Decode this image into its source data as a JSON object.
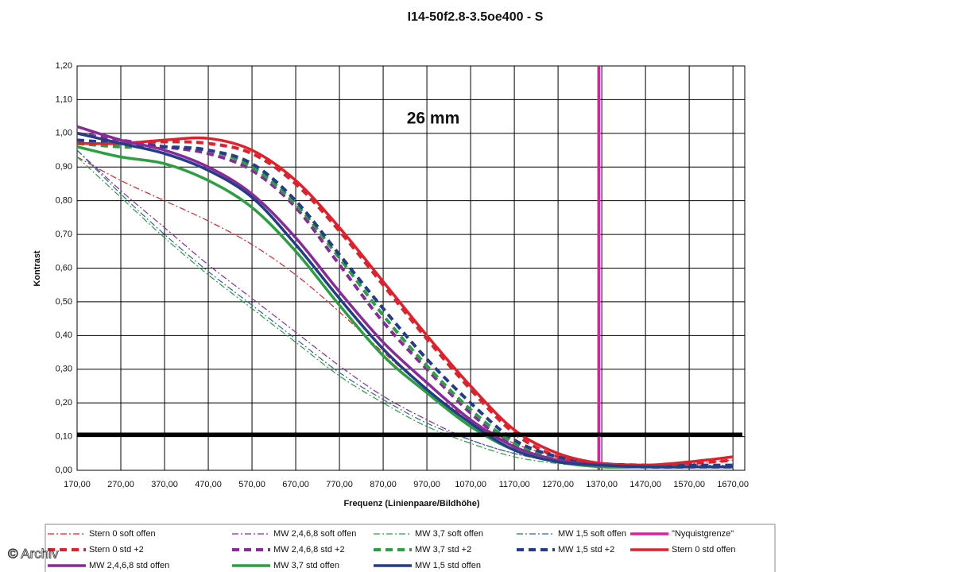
{
  "chart_data": {
    "type": "line",
    "title": "I14-50f2.8-3.5oe400 - S",
    "annotation": "26 mm",
    "watermark": "© Archiv",
    "xlabel": "Frequenz (Linienpaare/Bildhöhe)",
    "ylabel": "Kontrast",
    "x": [
      170,
      270,
      370,
      470,
      570,
      670,
      770,
      870,
      970,
      1070,
      1170,
      1270,
      1370,
      1470,
      1570,
      1670
    ],
    "xlim": [
      170,
      1697
    ],
    "ylim": [
      0,
      1.2
    ],
    "xticks": [
      {
        "value": 170,
        "label": "170,00"
      },
      {
        "value": 270,
        "label": "270,00"
      },
      {
        "value": 370,
        "label": "370,00"
      },
      {
        "value": 470,
        "label": "470,00"
      },
      {
        "value": 570,
        "label": "570,00"
      },
      {
        "value": 670,
        "label": "670,00"
      },
      {
        "value": 770,
        "label": "770,00"
      },
      {
        "value": 870,
        "label": "870,00"
      },
      {
        "value": 970,
        "label": "970,00"
      },
      {
        "value": 1070,
        "label": "1070,00"
      },
      {
        "value": 1170,
        "label": "1170,00"
      },
      {
        "value": 1270,
        "label": "1270,00"
      },
      {
        "value": 1370,
        "label": "1370,00"
      },
      {
        "value": 1470,
        "label": "1470,00"
      },
      {
        "value": 1570,
        "label": "1570,00"
      },
      {
        "value": 1670,
        "label": "1670,00"
      }
    ],
    "yticks": [
      {
        "value": 0,
        "label": "0,00"
      },
      {
        "value": 0.1,
        "label": "0,10"
      },
      {
        "value": 0.2,
        "label": "0,20"
      },
      {
        "value": 0.3,
        "label": "0,30"
      },
      {
        "value": 0.4,
        "label": "0,40"
      },
      {
        "value": 0.5,
        "label": "0,50"
      },
      {
        "value": 0.6,
        "label": "0,60"
      },
      {
        "value": 0.7,
        "label": "0,70"
      },
      {
        "value": 0.8,
        "label": "0,80"
      },
      {
        "value": 0.9,
        "label": "0,90"
      },
      {
        "value": 1.0,
        "label": "1,00"
      },
      {
        "value": 1.1,
        "label": "1,10"
      },
      {
        "value": 1.2,
        "label": "1,20"
      }
    ],
    "grid": true,
    "reference_line": {
      "value": 0.106,
      "color": "#000000"
    },
    "series": [
      {
        "name": "Stern 0 soft offen",
        "color": "#e0202a",
        "style": "dashdot-thin",
        "values": [
          0.93,
          0.86,
          0.8,
          0.74,
          0.67,
          0.58,
          0.47,
          0.35,
          0.24,
          0.15,
          0.08,
          0.04,
          0.02,
          0.015,
          0.02,
          0.03
        ]
      },
      {
        "name": "MW 2,4,6,8 soft offen",
        "color": "#8a2a9a",
        "style": "dashdot-thin",
        "values": [
          0.95,
          0.83,
          0.72,
          0.61,
          0.51,
          0.41,
          0.31,
          0.22,
          0.15,
          0.09,
          0.05,
          0.025,
          0.015,
          0.01,
          0.01,
          0.01
        ]
      },
      {
        "name": "MW 3,7 soft offen",
        "color": "#2aa040",
        "style": "dashdot-thin",
        "values": [
          0.93,
          0.81,
          0.69,
          0.58,
          0.48,
          0.38,
          0.28,
          0.2,
          0.13,
          0.08,
          0.04,
          0.02,
          0.01,
          0.01,
          0.01,
          0.01
        ]
      },
      {
        "name": "MW 1,5 soft offen",
        "color": "#2a6a9a",
        "style": "dashdot-thin",
        "values": [
          0.95,
          0.82,
          0.7,
          0.59,
          0.49,
          0.39,
          0.29,
          0.21,
          0.14,
          0.09,
          0.05,
          0.03,
          0.02,
          0.015,
          0.015,
          0.015
        ]
      },
      {
        "name": "\"Nyquistgrenze\"",
        "color": "#e0209a",
        "style": "vertical",
        "xvalue": 1363
      },
      {
        "name": "Stern 0 std +2",
        "color": "#e0202a",
        "style": "dashed-thick",
        "values": [
          0.97,
          0.97,
          0.975,
          0.97,
          0.94,
          0.85,
          0.71,
          0.55,
          0.39,
          0.24,
          0.11,
          0.04,
          0.02,
          0.015,
          0.02,
          0.03
        ]
      },
      {
        "name": "MW 2,4,6,8 std +2",
        "color": "#8a2a9a",
        "style": "dashed-thick",
        "values": [
          1.0,
          0.98,
          0.96,
          0.94,
          0.89,
          0.78,
          0.61,
          0.44,
          0.3,
          0.17,
          0.07,
          0.03,
          0.015,
          0.01,
          0.01,
          0.01
        ]
      },
      {
        "name": "MW 3,7 std +2",
        "color": "#2aa040",
        "style": "dashed-thick",
        "values": [
          0.97,
          0.96,
          0.96,
          0.95,
          0.9,
          0.79,
          0.63,
          0.46,
          0.31,
          0.18,
          0.08,
          0.03,
          0.015,
          0.01,
          0.01,
          0.01
        ]
      },
      {
        "name": "MW 1,5 std +2",
        "color": "#243c8a",
        "style": "dashed-thick",
        "values": [
          0.98,
          0.97,
          0.96,
          0.95,
          0.91,
          0.8,
          0.64,
          0.48,
          0.33,
          0.2,
          0.09,
          0.04,
          0.02,
          0.015,
          0.015,
          0.015
        ]
      },
      {
        "name": "Stern 0 std offen",
        "color": "#e0202a",
        "style": "solid-thick",
        "values": [
          0.97,
          0.97,
          0.98,
          0.985,
          0.95,
          0.86,
          0.72,
          0.56,
          0.4,
          0.25,
          0.12,
          0.05,
          0.02,
          0.015,
          0.025,
          0.04
        ]
      },
      {
        "name": "MW 2,4,6,8 std offen",
        "color": "#8a2a9a",
        "style": "solid-thick",
        "values": [
          1.02,
          0.98,
          0.95,
          0.9,
          0.82,
          0.69,
          0.53,
          0.38,
          0.26,
          0.15,
          0.07,
          0.03,
          0.015,
          0.01,
          0.01,
          0.01
        ]
      },
      {
        "name": "MW 3,7 std offen",
        "color": "#2aa040",
        "style": "solid-thick",
        "values": [
          0.96,
          0.93,
          0.91,
          0.86,
          0.78,
          0.65,
          0.49,
          0.34,
          0.23,
          0.13,
          0.06,
          0.025,
          0.01,
          0.01,
          0.01,
          0.01
        ]
      },
      {
        "name": "MW 1,5 std offen",
        "color": "#243c8a",
        "style": "solid-thick",
        "values": [
          1.0,
          0.97,
          0.94,
          0.89,
          0.81,
          0.67,
          0.51,
          0.36,
          0.24,
          0.14,
          0.06,
          0.025,
          0.015,
          0.01,
          0.01,
          0.01
        ]
      }
    ]
  }
}
